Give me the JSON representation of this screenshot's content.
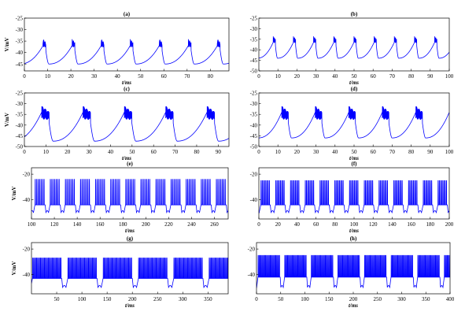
{
  "chart_data": [
    {
      "panel": "(a)",
      "type": "line",
      "xlabel": "t/ms",
      "ylabel": "V/mV",
      "xlim": [
        0,
        88
      ],
      "ylim": [
        -48,
        -25
      ],
      "xticks": [
        0,
        10,
        20,
        30,
        40,
        50,
        60,
        70,
        80
      ],
      "yticks": [
        -45,
        -40,
        -35,
        -30,
        -25
      ],
      "color": "#0000ff",
      "series": [
        {
          "pattern": "burst",
          "period": 12.5,
          "first": 8,
          "trough": -45,
          "peak": -34,
          "spike_low": -38,
          "burst_width": 1.2,
          "spikes": 14
        }
      ]
    },
    {
      "panel": "(b)",
      "type": "line",
      "xlabel": "t/ms",
      "ylabel": "",
      "xlim": [
        0,
        100
      ],
      "ylim": [
        -50,
        -25
      ],
      "xticks": [
        0,
        10,
        20,
        30,
        40,
        50,
        60,
        70,
        80,
        90,
        100
      ],
      "yticks": [
        -50,
        -45,
        -40,
        -35,
        -30,
        -25
      ],
      "color": "#0000ff",
      "series": [
        {
          "pattern": "burst",
          "period": 10.6,
          "first": 7.5,
          "trough": -44,
          "peak": -33.5,
          "spike_low": -37,
          "burst_width": 1.2,
          "spikes": 14
        }
      ]
    },
    {
      "panel": "(c)",
      "type": "line",
      "xlabel": "t/ms",
      "ylabel": "V/mV",
      "xlim": [
        0,
        95
      ],
      "ylim": [
        -50,
        -25
      ],
      "xticks": [
        0,
        10,
        20,
        30,
        40,
        50,
        60,
        70,
        80,
        90
      ],
      "yticks": [
        -50,
        -45,
        -40,
        -35,
        -30,
        -25
      ],
      "color": "#0000ff",
      "series": [
        {
          "pattern": "burst",
          "period": 19.2,
          "first": 8,
          "trough": -47.5,
          "peak": -31,
          "spike_low": -38,
          "burst_width": 3.5,
          "spikes": 30
        }
      ]
    },
    {
      "panel": "(d)",
      "type": "line",
      "xlabel": "t/ms",
      "ylabel": "",
      "xlim": [
        0,
        100
      ],
      "ylim": [
        -50,
        -25
      ],
      "xticks": [
        0,
        10,
        20,
        30,
        40,
        50,
        60,
        70,
        80,
        90,
        100
      ],
      "yticks": [
        -50,
        -45,
        -40,
        -35,
        -30,
        -25
      ],
      "color": "#0000ff",
      "series": [
        {
          "pattern": "burst",
          "period": 17.6,
          "first": 12,
          "trough": -46,
          "peak": -31,
          "spike_low": -38,
          "burst_width": 3.5,
          "spikes": 30
        }
      ]
    },
    {
      "panel": "(e)",
      "type": "line",
      "xlabel": "t/ms",
      "ylabel": "V/mV",
      "xlim": [
        100,
        272
      ],
      "ylim": [
        -55,
        -15
      ],
      "xticks": [
        100,
        120,
        140,
        160,
        180,
        200,
        220,
        240,
        260
      ],
      "yticks": [
        -60,
        -40,
        -20
      ],
      "color": "#0000ff",
      "series": [
        {
          "pattern": "spikes",
          "period": 13.2,
          "first": 103,
          "bottom": -44,
          "peak": -24,
          "dip": -50,
          "active": 9,
          "spikes": 7
        }
      ]
    },
    {
      "panel": "(f)",
      "type": "line",
      "xlabel": "t/ms",
      "ylabel": "",
      "xlim": [
        0,
        200
      ],
      "ylim": [
        -55,
        -15
      ],
      "xticks": [
        0,
        20,
        40,
        60,
        80,
        100,
        120,
        140,
        160,
        180,
        200
      ],
      "yticks": [
        -60,
        -40,
        -20
      ],
      "color": "#0000ff",
      "series": [
        {
          "pattern": "spikes",
          "period": 15.5,
          "first": 2,
          "bottom": -44,
          "peak": -25,
          "dip": -50,
          "active": 10,
          "spikes": 8
        }
      ]
    },
    {
      "panel": "(g)",
      "type": "line",
      "xlabel": "t/ms",
      "ylabel": "V/mV",
      "xlim": [
        0,
        390
      ],
      "ylim": [
        -55,
        -15
      ],
      "xticks": [
        50,
        100,
        150,
        200,
        250,
        300,
        350
      ],
      "yticks": [
        -60,
        -40,
        -20
      ],
      "color": "#0000ff",
      "series": [
        {
          "pattern": "spikes",
          "period": 70,
          "first": 2,
          "bottom": -43,
          "peak": -27,
          "dip": -50,
          "active": 58,
          "spikes": 30
        }
      ]
    },
    {
      "panel": "(h)",
      "type": "line",
      "xlabel": "t/ms",
      "ylabel": "",
      "xlim": [
        0,
        400
      ],
      "ylim": [
        -55,
        -15
      ],
      "xticks": [
        0,
        50,
        100,
        150,
        200,
        250,
        300,
        350,
        400
      ],
      "yticks": [
        -60,
        -40,
        -20
      ],
      "color": "#0000ff",
      "series": [
        {
          "pattern": "spikes",
          "period": 55,
          "first": 3,
          "bottom": -42,
          "peak": -25,
          "dip": -50,
          "active": 46,
          "spikes": 24
        }
      ]
    }
  ]
}
